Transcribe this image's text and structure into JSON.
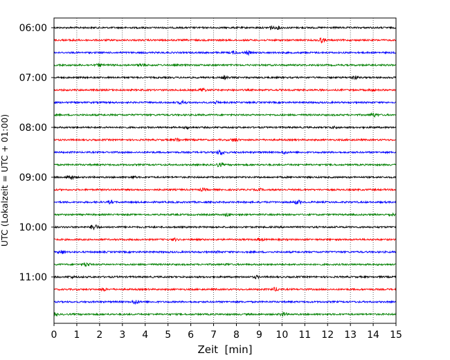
{
  "chart_data": {
    "type": "line",
    "subtype": "helicorder",
    "title": "",
    "xlabel": "Zeit  [min]",
    "ylabel": "UTC (Lokalzeit = UTC + 01:00)",
    "xlim": [
      0,
      15
    ],
    "x_ticks": [
      0,
      1,
      2,
      3,
      4,
      5,
      6,
      7,
      8,
      9,
      10,
      11,
      12,
      13,
      14,
      15
    ],
    "x_tick_labels": [
      "0",
      "1",
      "2",
      "3",
      "4",
      "5",
      "6",
      "7",
      "8",
      "9",
      "10",
      "11",
      "12",
      "13",
      "14",
      "15"
    ],
    "y_tick_labels": [
      "06:00",
      "07:00",
      "08:00",
      "09:00",
      "10:00",
      "11:00"
    ],
    "trace_minutes": 15,
    "trace_count": 24,
    "start_time": "06:00",
    "trace_colors": [
      "#000000",
      "#ff0000",
      "#0000ff",
      "#008000"
    ],
    "vertical_grid": "dotted",
    "grid": true,
    "legend": "none"
  }
}
